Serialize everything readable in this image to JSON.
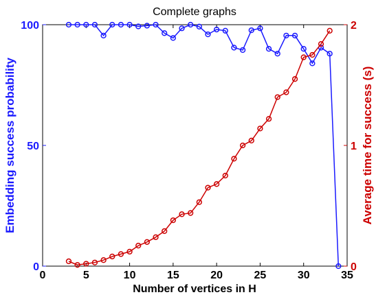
{
  "chart_data": {
    "type": "line",
    "title": "Complete graphs",
    "xlabel": "Number of vertices in H",
    "ylabel_left": "Embedding success probability",
    "ylabel_right": "Average time for success (s)",
    "xlim": [
      0,
      35
    ],
    "ylim_left": [
      0,
      100
    ],
    "ylim_right": [
      0,
      2
    ],
    "x_ticks": [
      0,
      5,
      10,
      15,
      20,
      25,
      30,
      35
    ],
    "y_ticks_left": [
      0,
      50,
      100
    ],
    "y_ticks_right": [
      0,
      1,
      2
    ],
    "grid": false,
    "colors": {
      "left": "#1a1aff",
      "right": "#cc0000",
      "axis": "#000000"
    },
    "series": [
      {
        "axis": "left",
        "x": [
          3,
          4,
          5,
          6,
          7,
          8,
          9,
          10,
          11,
          12,
          13,
          14,
          15,
          16,
          17,
          18,
          19,
          20,
          21,
          22,
          23,
          24,
          25,
          26,
          27,
          28,
          29,
          30,
          31,
          32,
          33,
          34
        ],
        "values": [
          100,
          100,
          100,
          100,
          95.5,
          100,
          100,
          100,
          99.3,
          99.6,
          100,
          96.5,
          94.5,
          98.5,
          100,
          99.2,
          96,
          98,
          97.5,
          90.5,
          89.5,
          97.7,
          98.5,
          90,
          88,
          95.5,
          95.5,
          90,
          84,
          90.5,
          88,
          0
        ]
      },
      {
        "axis": "right",
        "x": [
          3,
          4,
          5,
          6,
          7,
          8,
          9,
          10,
          11,
          12,
          13,
          14,
          15,
          16,
          17,
          18,
          19,
          20,
          21,
          22,
          23,
          24,
          25,
          26,
          27,
          28,
          29,
          30,
          31,
          32,
          33
        ],
        "values": [
          0.04,
          0.01,
          0.02,
          0.03,
          0.05,
          0.08,
          0.1,
          0.12,
          0.17,
          0.2,
          0.24,
          0.29,
          0.38,
          0.43,
          0.44,
          0.53,
          0.65,
          0.68,
          0.75,
          0.89,
          1.0,
          1.04,
          1.14,
          1.22,
          1.4,
          1.44,
          1.55,
          1.73,
          1.75,
          1.84,
          1.95
        ]
      }
    ]
  }
}
